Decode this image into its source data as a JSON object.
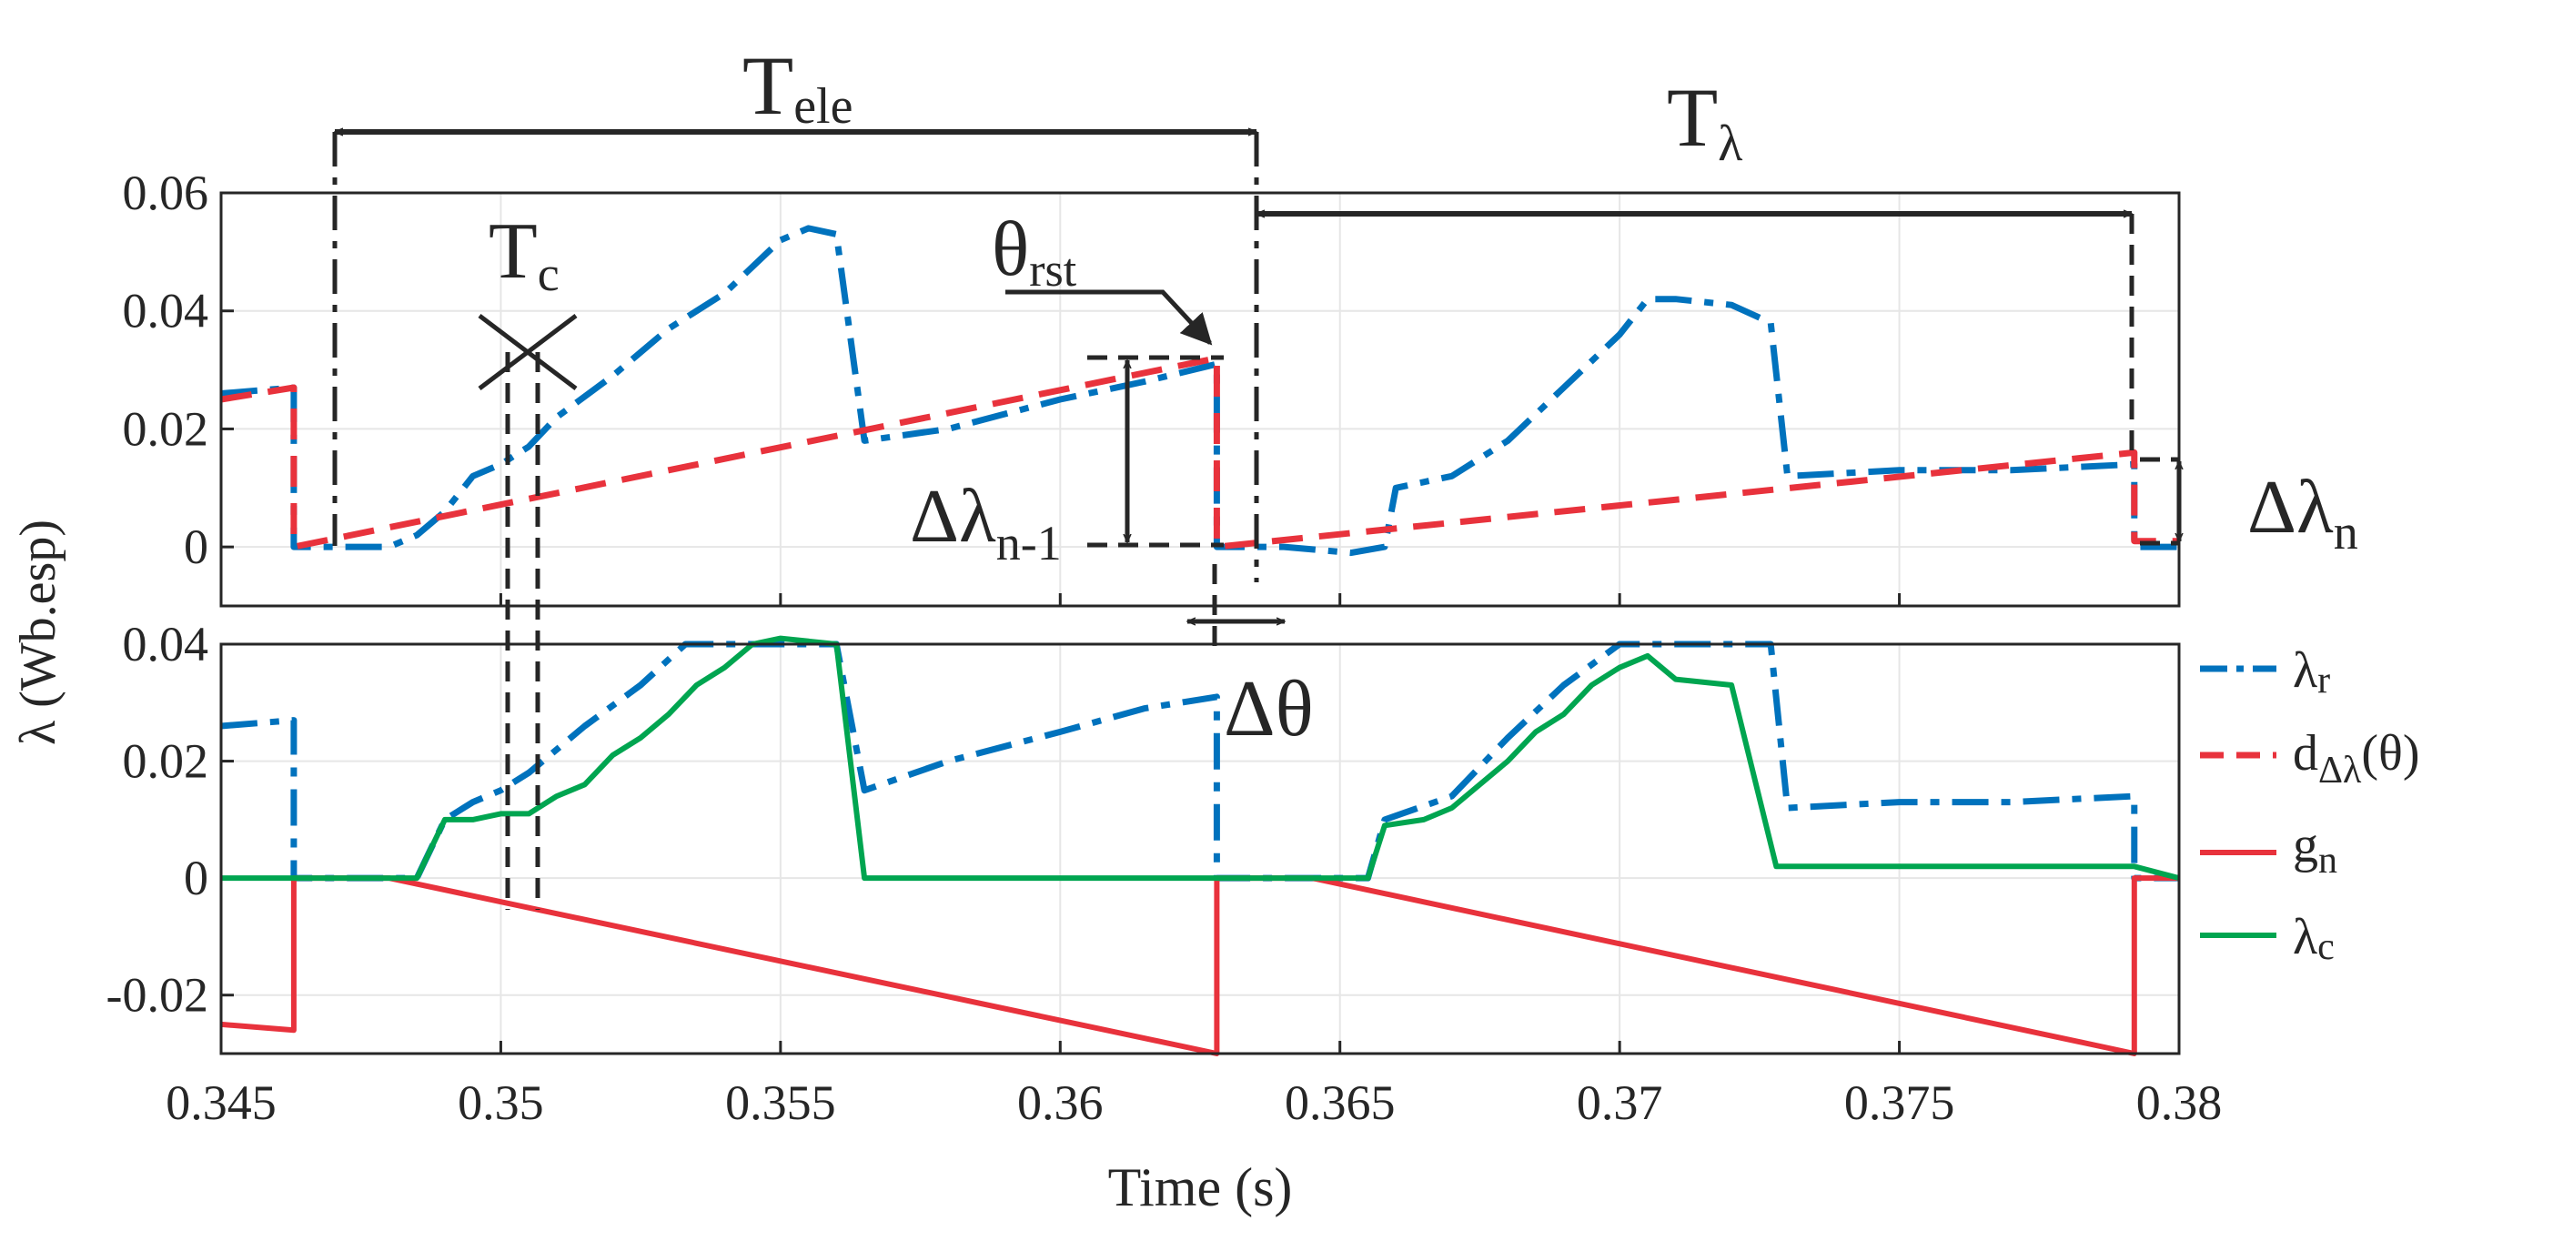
{
  "chart_data": [
    {
      "type": "line",
      "panel": "top",
      "xlim": [
        0.345,
        0.38
      ],
      "ylim": [
        -0.01,
        0.06
      ],
      "yticks": [
        "0.06",
        "0.04",
        "0.02",
        "0"
      ],
      "ytick_values": [
        0.06,
        0.04,
        0.02,
        0
      ],
      "xticks": [
        0.345,
        0.35,
        0.355,
        0.36,
        0.365,
        0.37,
        0.375,
        0.38
      ],
      "grid": true,
      "series": [
        {
          "name": "λr",
          "color": "#0072BD",
          "style": "dashdot",
          "x": [
            0.345,
            0.3463,
            0.3463,
            0.3468,
            0.3475,
            0.348,
            0.3485,
            0.349,
            0.3495,
            0.35,
            0.3505,
            0.351,
            0.352,
            0.353,
            0.354,
            0.355,
            0.3555,
            0.356,
            0.3565,
            0.358,
            0.36,
            0.3615,
            0.3628,
            0.3628,
            0.3632,
            0.364,
            0.3652,
            0.3658,
            0.366,
            0.367,
            0.368,
            0.369,
            0.37,
            0.3705,
            0.371,
            0.372,
            0.3727,
            0.373,
            0.375,
            0.377,
            0.3792,
            0.3792,
            0.38
          ],
          "y": [
            0.026,
            0.027,
            0.0,
            0.0,
            0.0,
            0.0,
            0.002,
            0.006,
            0.012,
            0.014,
            0.017,
            0.022,
            0.029,
            0.037,
            0.043,
            0.052,
            0.054,
            0.053,
            0.018,
            0.02,
            0.025,
            0.028,
            0.031,
            0.0,
            0.0,
            0.0,
            -0.001,
            0.0,
            0.01,
            0.012,
            0.018,
            0.027,
            0.036,
            0.042,
            0.042,
            0.041,
            0.038,
            0.012,
            0.013,
            0.013,
            0.014,
            0.0,
            0.0
          ]
        },
        {
          "name": "dΔλ(θ)",
          "color": "#E8323C",
          "style": "dashed",
          "x": [
            0.345,
            0.3463,
            0.3463,
            0.3628,
            0.3628,
            0.3792,
            0.3792,
            0.38
          ],
          "y": [
            0.025,
            0.027,
            0.0,
            0.032,
            0.0,
            0.016,
            0.001,
            0.001
          ]
        }
      ]
    },
    {
      "type": "line",
      "panel": "bottom",
      "xlim": [
        0.345,
        0.38
      ],
      "ylim": [
        -0.03,
        0.04
      ],
      "yticks": [
        "0.04",
        "0.02",
        "0",
        "-0.02"
      ],
      "ytick_values": [
        0.04,
        0.02,
        0,
        -0.02
      ],
      "xticks": [
        0.345,
        0.35,
        0.355,
        0.36,
        0.365,
        0.37,
        0.375,
        0.38
      ],
      "xticklabels": [
        "0.345",
        "0.35",
        "0.355",
        "0.36",
        "0.365",
        "0.37",
        "0.375",
        "0.38"
      ],
      "xlabel": "Time (s)",
      "ylabel": "λ (Wb.esp)",
      "grid": true,
      "series": [
        {
          "name": "λr",
          "color": "#0072BD",
          "style": "dashdot",
          "x": [
            0.345,
            0.3463,
            0.3463,
            0.3475,
            0.3485,
            0.349,
            0.3495,
            0.35,
            0.3505,
            0.3515,
            0.3525,
            0.3533,
            0.356,
            0.356,
            0.3565,
            0.358,
            0.36,
            0.3615,
            0.3628,
            0.3628,
            0.3632,
            0.365,
            0.3655,
            0.3658,
            0.367,
            0.368,
            0.369,
            0.37,
            0.3722,
            0.3727,
            0.373,
            0.375,
            0.377,
            0.3792,
            0.3792,
            0.38
          ],
          "y": [
            0.026,
            0.027,
            0.0,
            0.0,
            0.0,
            0.01,
            0.013,
            0.015,
            0.018,
            0.026,
            0.033,
            0.04,
            0.04,
            0.04,
            0.015,
            0.02,
            0.025,
            0.029,
            0.031,
            0.0,
            0.0,
            0.0,
            0.0,
            0.01,
            0.014,
            0.024,
            0.033,
            0.04,
            0.04,
            0.04,
            0.012,
            0.013,
            0.013,
            0.014,
            0.0,
            0.0
          ]
        },
        {
          "name": "gn",
          "color": "#E8323C",
          "style": "solid",
          "x": [
            0.345,
            0.3463,
            0.3463,
            0.348,
            0.3628,
            0.3628,
            0.3645,
            0.3792,
            0.3792,
            0.38
          ],
          "y": [
            -0.025,
            -0.026,
            0.0,
            0.0,
            -0.03,
            0.0,
            0.0,
            -0.03,
            0.0,
            0.0
          ]
        },
        {
          "name": "λc",
          "color": "#00A550",
          "style": "solid",
          "x": [
            0.345,
            0.3485,
            0.349,
            0.3495,
            0.35,
            0.3505,
            0.351,
            0.3515,
            0.352,
            0.3525,
            0.353,
            0.3535,
            0.354,
            0.3545,
            0.355,
            0.356,
            0.3565,
            0.358,
            0.36,
            0.3628,
            0.364,
            0.3655,
            0.3658,
            0.3665,
            0.367,
            0.3675,
            0.368,
            0.3685,
            0.369,
            0.3695,
            0.37,
            0.3705,
            0.371,
            0.372,
            0.3728,
            0.375,
            0.3792,
            0.38
          ],
          "y": [
            0.0,
            0.0,
            0.01,
            0.01,
            0.011,
            0.011,
            0.014,
            0.016,
            0.021,
            0.024,
            0.028,
            0.033,
            0.036,
            0.04,
            0.041,
            0.04,
            0.0,
            0.0,
            0.0,
            0.0,
            0.0,
            0.0,
            0.009,
            0.01,
            0.012,
            0.016,
            0.02,
            0.025,
            0.028,
            0.033,
            0.036,
            0.038,
            0.034,
            0.033,
            0.002,
            0.002,
            0.002,
            0.0
          ]
        }
      ]
    }
  ],
  "annotations": {
    "t_ele": {
      "base": "T",
      "sub": "ele"
    },
    "t_lambda": {
      "base": "T",
      "sub": "λ"
    },
    "t_c": {
      "base": "T",
      "sub": "c"
    },
    "theta_rst": {
      "base": "θ",
      "sub": "rst"
    },
    "dlambda_prev": {
      "base": "Δλ",
      "sub": "n-1"
    },
    "dlambda_n": {
      "base": "Δλ",
      "sub": "n"
    },
    "dtheta": {
      "text": "Δθ"
    }
  },
  "legend": {
    "items": [
      {
        "base": "λ",
        "sub": "r",
        "color": "#0072BD",
        "style": "dashdot"
      },
      {
        "base": "d",
        "sub": "Δλ",
        "suffix": "(θ)",
        "color": "#E8323C",
        "style": "dashed"
      },
      {
        "base": "g",
        "sub": "n",
        "color": "#E8323C",
        "style": "solid"
      },
      {
        "base": "λ",
        "sub": "c",
        "color": "#00A550",
        "style": "solid"
      }
    ]
  }
}
